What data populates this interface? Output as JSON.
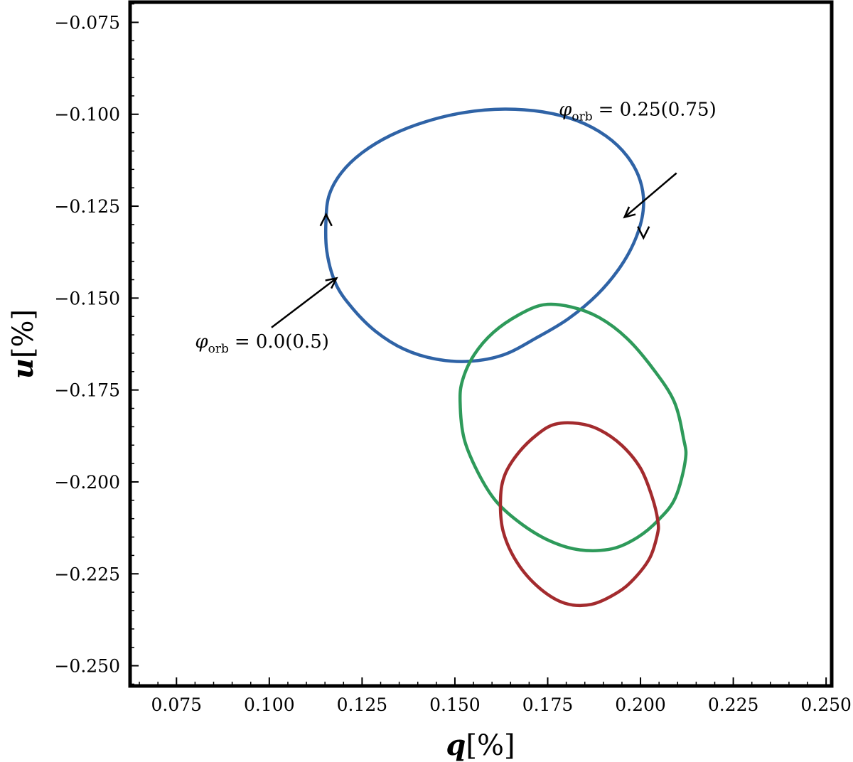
{
  "chart_data": {
    "type": "line",
    "title": "",
    "xlabel": "q[%]",
    "ylabel": "u[%]",
    "xlabel_parts": {
      "var": "q",
      "unit": "[%]"
    },
    "ylabel_parts": {
      "var": "u",
      "unit": "[%]"
    },
    "xlim": [
      0.0625,
      0.2515
    ],
    "ylim": [
      -0.2555,
      -0.0695
    ],
    "xticks": [
      0.075,
      0.1,
      0.125,
      0.15,
      0.175,
      0.2,
      0.225,
      0.25
    ],
    "yticks": [
      -0.075,
      -0.1,
      -0.125,
      -0.15,
      -0.175,
      -0.2,
      -0.225,
      -0.25
    ],
    "xtick_labels": [
      "0.075",
      "0.100",
      "0.125",
      "0.150",
      "0.175",
      "0.200",
      "0.225",
      "0.250"
    ],
    "ytick_labels": [
      "−0.075",
      "−0.100",
      "−0.125",
      "−0.150",
      "−0.175",
      "−0.200",
      "−0.225",
      "−0.250"
    ],
    "minor_step": 0.005,
    "grid": false,
    "series": [
      {
        "color": "#2f63a6",
        "x": [
          0.1153,
          0.1162,
          0.1195,
          0.1251,
          0.1328,
          0.1422,
          0.1527,
          0.1634,
          0.1739,
          0.1831,
          0.1907,
          0.1964,
          0.1999,
          0.2008,
          0.1989,
          0.1947,
          0.1884,
          0.1806,
          0.172,
          0.1632,
          0.154,
          0.1449,
          0.1363,
          0.1287,
          0.1226,
          0.118,
          0.1155,
          0.1153
        ],
        "y": [
          -0.1283,
          -0.1218,
          -0.1158,
          -0.1104,
          -0.1057,
          -0.102,
          -0.0995,
          -0.0986,
          -0.0994,
          -0.1018,
          -0.1059,
          -0.1114,
          -0.118,
          -0.1253,
          -0.1333,
          -0.1413,
          -0.149,
          -0.1556,
          -0.1608,
          -0.1654,
          -0.1672,
          -0.1666,
          -0.1639,
          -0.1591,
          -0.153,
          -0.1463,
          -0.1373,
          -0.1283
        ]
      },
      {
        "color": "#2e9a5a",
        "x": [
          0.1514,
          0.1521,
          0.1552,
          0.1604,
          0.1673,
          0.174,
          0.1813,
          0.1889,
          0.1963,
          0.2032,
          0.209,
          0.2116,
          0.2121,
          0.2094,
          0.2049,
          0.1992,
          0.1923,
          0.1837,
          0.1759,
          0.1683,
          0.1612,
          0.1563,
          0.1525,
          0.1514
        ],
        "y": [
          -0.1783,
          -0.1722,
          -0.1654,
          -0.1593,
          -0.1545,
          -0.1518,
          -0.1524,
          -0.1553,
          -0.1609,
          -0.169,
          -0.178,
          -0.1882,
          -0.194,
          -0.2043,
          -0.2103,
          -0.2151,
          -0.2182,
          -0.2185,
          -0.2162,
          -0.2117,
          -0.2054,
          -0.1976,
          -0.1883,
          -0.1783
        ]
      },
      {
        "color": "#a32b2e",
        "x": [
          0.1623,
          0.1635,
          0.1672,
          0.1723,
          0.177,
          0.1832,
          0.1889,
          0.195,
          0.2,
          0.2031,
          0.2047,
          0.2045,
          0.2025,
          0.1983,
          0.1938,
          0.1868,
          0.1796,
          0.1728,
          0.1668,
          0.163,
          0.1623
        ],
        "y": [
          -0.2044,
          -0.198,
          -0.192,
          -0.187,
          -0.1843,
          -0.1841,
          -0.1858,
          -0.1901,
          -0.1963,
          -0.204,
          -0.2108,
          -0.2145,
          -0.2207,
          -0.2263,
          -0.2301,
          -0.2333,
          -0.233,
          -0.2289,
          -0.222,
          -0.2134,
          -0.2044
        ]
      }
    ],
    "arrows_on_curve": [
      {
        "x": 0.1153,
        "y": -0.1292,
        "dir": "up"
      },
      {
        "x": 0.2008,
        "y": -0.1317,
        "dir": "down"
      }
    ],
    "annotations": [
      {
        "symbol": "φ",
        "sub": "orb",
        "text": "= 0.25(0.75)",
        "text_x": 0.178,
        "text_y": -0.1003,
        "arrow_from": [
          0.2097,
          -0.116
        ],
        "arrow_to": [
          0.1957,
          -0.128
        ]
      },
      {
        "symbol": "φ",
        "sub": "orb",
        "text": "= 0.0(0.5)",
        "text_x": 0.08,
        "text_y": -0.1635,
        "arrow_from": [
          0.1006,
          -0.158
        ],
        "arrow_to": [
          0.1181,
          -0.1446
        ]
      }
    ]
  }
}
